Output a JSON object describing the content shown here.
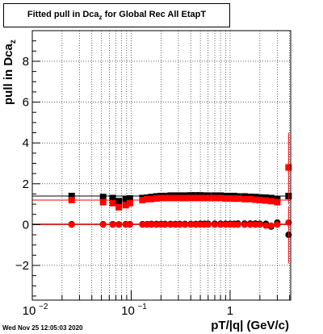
{
  "chart_data": {
    "type": "scatter",
    "title_prefix": "Fitted pull in Dca",
    "title_sub": "z",
    "title_suffix": " for Global Rec All EtapT",
    "ylabel_prefix": "pull in Dca",
    "ylabel_sub": "z",
    "xlabel": "pT/|q| (GeV/c)",
    "xscale": "log",
    "xlim": [
      0.01,
      4.1
    ],
    "ylim": [
      -3.7,
      9.5
    ],
    "grid": true,
    "xticks": [
      {
        "value": 0.01,
        "base": "10",
        "exp": "−2"
      },
      {
        "value": 0.1,
        "base": "10",
        "exp": "−1"
      },
      {
        "value": 1,
        "base": "1",
        "exp": ""
      }
    ],
    "yticks": [
      -2,
      0,
      2,
      4,
      6,
      8
    ],
    "series": [
      {
        "color": "#000000",
        "x": [
          0.025,
          0.052,
          0.065,
          0.075,
          0.088,
          0.097,
          0.13,
          0.145,
          0.16,
          0.18,
          0.2,
          0.22,
          0.25,
          0.28,
          0.31,
          0.35,
          0.4,
          0.45,
          0.5,
          0.55,
          0.6,
          0.7,
          0.8,
          0.9,
          1.0,
          1.1,
          1.2,
          1.4,
          1.6,
          1.8,
          2.0,
          2.3,
          2.6,
          3.0,
          3.9
        ],
        "y": [
          1.4,
          1.35,
          1.3,
          1.15,
          1.25,
          1.28,
          1.3,
          1.32,
          1.35,
          1.38,
          1.4,
          1.4,
          1.42,
          1.42,
          1.42,
          1.42,
          1.43,
          1.43,
          1.43,
          1.42,
          1.42,
          1.42,
          1.42,
          1.4,
          1.4,
          1.4,
          1.38,
          1.38,
          1.36,
          1.35,
          1.33,
          1.32,
          1.3,
          1.25,
          1.4
        ]
      },
      {
        "color": "#000000",
        "x": [
          0.025,
          0.052,
          0.065,
          0.075,
          0.088,
          0.097,
          0.13,
          0.145,
          0.16,
          0.18,
          0.2,
          0.22,
          0.25,
          0.28,
          0.31,
          0.35,
          0.4,
          0.45,
          0.5,
          0.55,
          0.6,
          0.7,
          0.8,
          0.9,
          1.0,
          1.1,
          1.2,
          1.4,
          1.6,
          1.8,
          2.0,
          2.3,
          2.6,
          3.0,
          3.9
        ],
        "y": [
          0.02,
          0.02,
          0.02,
          0.01,
          0.02,
          0.02,
          0.02,
          0.02,
          0.03,
          0.03,
          0.03,
          0.03,
          0.03,
          0.03,
          0.03,
          0.03,
          0.03,
          0.03,
          0.04,
          0.04,
          0.04,
          0.04,
          0.04,
          0.04,
          0.04,
          0.04,
          0.05,
          0.05,
          0.05,
          0.05,
          0.04,
          0.04,
          -0.1,
          0.1,
          -0.5
        ]
      },
      {
        "color": "#ff0000",
        "x": [
          0.025,
          0.052,
          0.065,
          0.075,
          0.088,
          0.097,
          0.13,
          0.145,
          0.16,
          0.18,
          0.2,
          0.22,
          0.25,
          0.28,
          0.31,
          0.35,
          0.4,
          0.45,
          0.5,
          0.55,
          0.6,
          0.7,
          0.8,
          0.9,
          1.0,
          1.1,
          1.2,
          1.4,
          1.6,
          1.8,
          2.0,
          2.3,
          2.6,
          3.0,
          3.9
        ],
        "y": [
          1.2,
          1.1,
          1.05,
          0.85,
          0.95,
          1.05,
          1.2,
          1.25,
          1.25,
          1.28,
          1.3,
          1.3,
          1.3,
          1.3,
          1.3,
          1.3,
          1.3,
          1.3,
          1.3,
          1.3,
          1.3,
          1.3,
          1.3,
          1.28,
          1.28,
          1.27,
          1.27,
          1.25,
          1.25,
          1.22,
          1.2,
          1.18,
          1.15,
          1.1,
          2.8
        ]
      },
      {
        "color": "#ff0000",
        "x": [
          0.025,
          0.052,
          0.065,
          0.075,
          0.088,
          0.097,
          0.13,
          0.145,
          0.16,
          0.18,
          0.2,
          0.22,
          0.25,
          0.28,
          0.31,
          0.35,
          0.4,
          0.45,
          0.5,
          0.55,
          0.6,
          0.7,
          0.8,
          0.9,
          1.0,
          1.1,
          1.2,
          1.4,
          1.6,
          1.8,
          2.0,
          2.3,
          2.6,
          3.0,
          3.9
        ],
        "y": [
          0.0,
          0.0,
          0.0,
          0.0,
          0.0,
          0.0,
          0.0,
          0.0,
          0.0,
          0.0,
          0.0,
          0.0,
          0.0,
          0.0,
          0.0,
          0.0,
          0.0,
          0.0,
          0.0,
          0.0,
          0.0,
          0.0,
          0.0,
          0.0,
          0.0,
          0.0,
          0.0,
          0.0,
          0.0,
          0.0,
          0.0,
          -0.05,
          -0.05,
          0.0,
          0.1
        ]
      }
    ]
  },
  "footer": "Wed Nov 25 12:05:03 2020"
}
